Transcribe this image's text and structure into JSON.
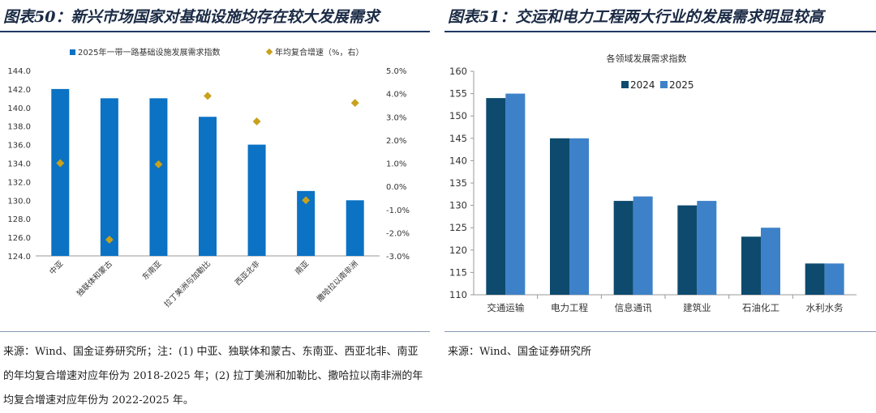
{
  "left": {
    "title": "图表50：新兴市场国家对基础设施均存在较大发展需求",
    "source": "来源：Wind、国金证券研究所；注：(1) 中亚、独联体和蒙古、东南亚、西亚北非、南亚的年均复合增速对应年份为 2018-2025 年；(2) 拉丁美洲和加勒比、撒哈拉以南非洲的年均复合增速对应年份为 2022-2025 年。"
  },
  "right": {
    "title": "图表51：交运和电力工程两大行业的发展需求明显较高",
    "source": "来源：Wind、国金证券研究所"
  },
  "chart_data": [
    {
      "type": "bar",
      "title": "",
      "categories": [
        "中亚",
        "独联体和蒙古",
        "东南亚",
        "拉丁美洲与加勒比",
        "西亚北非",
        "南亚",
        "撒哈拉以南非洲"
      ],
      "series": [
        {
          "name": "2025年一带一路基础设施发展需求指数",
          "type": "bar",
          "axis": "left",
          "values": [
            142,
            141,
            141,
            139,
            136,
            131,
            130
          ]
        },
        {
          "name": "年均复合增速（%，右）",
          "type": "scatter",
          "axis": "right",
          "values": [
            1.0,
            -2.3,
            0.95,
            3.9,
            2.8,
            -0.6,
            3.6
          ]
        }
      ],
      "ylim": [
        124,
        144
      ],
      "yticks": [
        "124.0",
        "126.0",
        "128.0",
        "130.0",
        "132.0",
        "134.0",
        "136.0",
        "138.0",
        "140.0",
        "142.0",
        "144.0"
      ],
      "y2lim": [
        -3,
        5
      ],
      "y2ticks": [
        "-3.0%",
        "-2.0%",
        "-1.0%",
        "0.0%",
        "1.0%",
        "2.0%",
        "3.0%",
        "4.0%",
        "5.0%"
      ],
      "legend": "top",
      "grid": false,
      "colors": {
        "bar": "#0b72c4",
        "marker": "#c9a11c"
      }
    },
    {
      "type": "bar",
      "title": "各领域发展需求指数",
      "categories": [
        "交通运输",
        "电力工程",
        "信息通讯",
        "建筑业",
        "石油化工",
        "水利水务"
      ],
      "series": [
        {
          "name": "2024",
          "values": [
            154,
            145,
            131,
            130,
            123,
            117
          ]
        },
        {
          "name": "2025",
          "values": [
            155,
            145,
            132,
            131,
            125,
            117
          ]
        }
      ],
      "ylim": [
        110,
        160
      ],
      "yticks": [
        "110",
        "115",
        "120",
        "125",
        "130",
        "135",
        "140",
        "145",
        "150",
        "155",
        "160"
      ],
      "legend": "top",
      "grid": false,
      "colors": {
        "2024": "#0d4a6e",
        "2025": "#3d82c9"
      }
    }
  ]
}
